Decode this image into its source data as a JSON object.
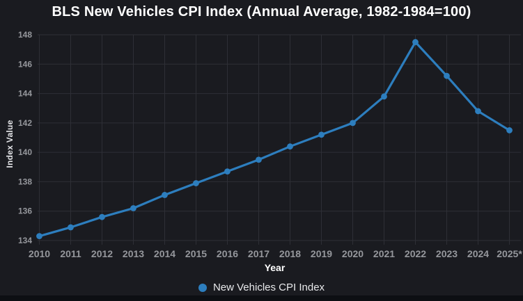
{
  "chart_data": {
    "type": "line",
    "title": "BLS New Vehicles CPI Index (Annual Average, 1982-1984=100)",
    "xlabel": "Year",
    "ylabel": "Index Value",
    "categories": [
      "2010",
      "2011",
      "2012",
      "2013",
      "2014",
      "2015",
      "2016",
      "2017",
      "2018",
      "2019",
      "2020",
      "2021",
      "2022",
      "2023",
      "2024",
      "2025*"
    ],
    "series": [
      {
        "name": "New Vehicles CPI Index",
        "color": "#2d7ebe",
        "values": [
          134.3,
          134.9,
          135.6,
          136.2,
          137.1,
          137.9,
          138.7,
          139.5,
          140.4,
          141.2,
          142.0,
          143.8,
          147.5,
          145.2,
          142.8,
          141.5
        ]
      }
    ],
    "ylim": [
      134,
      148
    ],
    "yticks": [
      134,
      136,
      138,
      140,
      142,
      144,
      146,
      148
    ],
    "grid": true,
    "legend_position": "bottom",
    "marker_shape": "circle"
  },
  "theme": {
    "background": "#1a1b20",
    "grid_color": "#2e2f36",
    "tick_label_color": "#95979c",
    "title_color": "#ffffff",
    "axis_title_color": "#e4e5e8",
    "legend_text_color": "#e8e9eb",
    "series_color": "#2d7ebe",
    "bottom_strip_color": "#0d0f13"
  }
}
